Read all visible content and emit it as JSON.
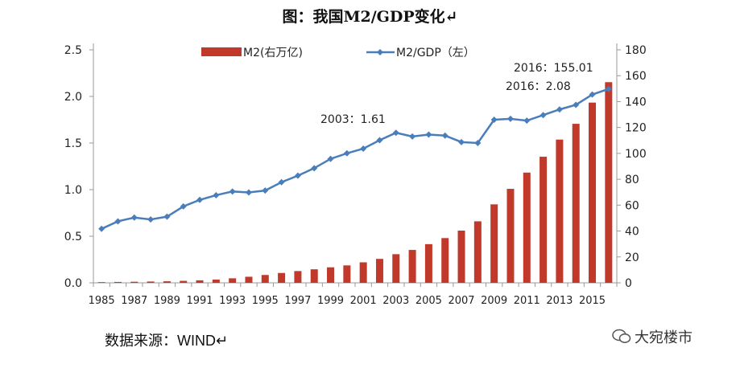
{
  "title": "图：我国M2/GDP变化↵",
  "source": "数据来源：WIND↵",
  "watermark": "大宛楼市",
  "chart_data": {
    "type": "bar+line",
    "categories": [
      1985,
      1986,
      1987,
      1988,
      1989,
      1990,
      1991,
      1992,
      1993,
      1994,
      1995,
      1996,
      1997,
      1998,
      1999,
      2000,
      2001,
      2002,
      2003,
      2004,
      2005,
      2006,
      2007,
      2008,
      2009,
      2010,
      2011,
      2012,
      2013,
      2014,
      2015,
      2016
    ],
    "x_tick_labels": [
      "1985",
      "1987",
      "1989",
      "1991",
      "1993",
      "1995",
      "1997",
      "1999",
      "2001",
      "2003",
      "2005",
      "2007",
      "2009",
      "2011",
      "2013",
      "2015"
    ],
    "series": [
      {
        "name": "M2(右万亿)",
        "type": "bar",
        "axis": "right",
        "color": "#C0392B",
        "values": [
          0.53,
          0.67,
          0.83,
          1.01,
          1.19,
          1.53,
          1.93,
          2.54,
          3.49,
          4.69,
          6.07,
          7.61,
          9.1,
          10.45,
          11.99,
          13.46,
          15.83,
          18.5,
          22.12,
          25.41,
          29.88,
          34.56,
          40.34,
          47.52,
          60.62,
          72.59,
          85.16,
          97.41,
          110.65,
          122.84,
          139.23,
          155.01
        ]
      },
      {
        "name": "M2/GDP（左）",
        "type": "line",
        "axis": "left",
        "color": "#4A7EBB",
        "values": [
          0.58,
          0.66,
          0.7,
          0.68,
          0.71,
          0.82,
          0.89,
          0.94,
          0.98,
          0.97,
          0.99,
          1.08,
          1.15,
          1.23,
          1.33,
          1.39,
          1.44,
          1.53,
          1.61,
          1.57,
          1.59,
          1.58,
          1.51,
          1.5,
          1.75,
          1.76,
          1.74,
          1.8,
          1.86,
          1.91,
          2.02,
          2.08
        ]
      }
    ],
    "y_left": {
      "range": [
        0,
        2.5
      ],
      "ticks": [
        "0.0",
        "0.5",
        "1.0",
        "1.5",
        "2.0",
        "2.5"
      ]
    },
    "y_right": {
      "range": [
        0,
        180
      ],
      "ticks": [
        "0",
        "20",
        "40",
        "60",
        "80",
        "100",
        "120",
        "140",
        "160",
        "180"
      ]
    },
    "annotations": [
      {
        "text": "2003：1.61",
        "year": 2003
      },
      {
        "text": "2016：155.01",
        "year": 2016
      },
      {
        "text": "2016：2.08",
        "year": 2016
      }
    ],
    "legend": "top",
    "grid": false
  }
}
